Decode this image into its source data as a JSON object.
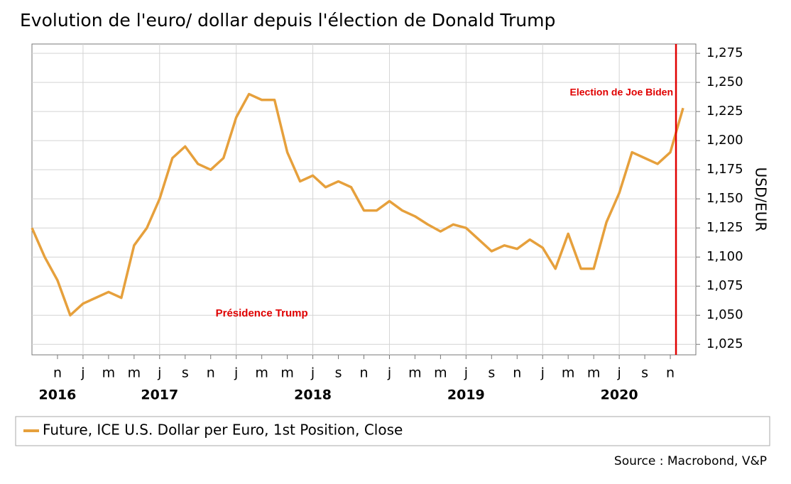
{
  "chart_data": {
    "type": "line",
    "title": "Evolution de l'euro/ dollar depuis l'élection de Donald Trump",
    "y_label": "USD/EUR",
    "source": "Source : Macrobond, V&P",
    "x": [
      "2016-09",
      "2016-10",
      "2016-11",
      "2016-12",
      "2017-01",
      "2017-02",
      "2017-03",
      "2017-04",
      "2017-05",
      "2017-06",
      "2017-07",
      "2017-08",
      "2017-09",
      "2017-10",
      "2017-11",
      "2017-12",
      "2018-01",
      "2018-02",
      "2018-03",
      "2018-04",
      "2018-05",
      "2018-06",
      "2018-07",
      "2018-08",
      "2018-09",
      "2018-10",
      "2018-11",
      "2018-12",
      "2019-01",
      "2019-02",
      "2019-03",
      "2019-04",
      "2019-05",
      "2019-06",
      "2019-07",
      "2019-08",
      "2019-09",
      "2019-10",
      "2019-11",
      "2019-12",
      "2020-01",
      "2020-02",
      "2020-03",
      "2020-04",
      "2020-05",
      "2020-06",
      "2020-07",
      "2020-08",
      "2020-09",
      "2020-10",
      "2020-11",
      "2020-12"
    ],
    "series": [
      {
        "name": "Future, ICE U.S. Dollar per Euro, 1st Position, Close",
        "color": "#e6a03c",
        "values": [
          1.125,
          1.1,
          1.08,
          1.05,
          1.06,
          1.065,
          1.07,
          1.065,
          1.11,
          1.125,
          1.15,
          1.185,
          1.195,
          1.18,
          1.175,
          1.185,
          1.22,
          1.24,
          1.235,
          1.235,
          1.19,
          1.165,
          1.17,
          1.16,
          1.165,
          1.16,
          1.14,
          1.14,
          1.148,
          1.14,
          1.135,
          1.128,
          1.122,
          1.128,
          1.125,
          1.115,
          1.105,
          1.11,
          1.107,
          1.115,
          1.108,
          1.09,
          1.12,
          1.09,
          1.09,
          1.13,
          1.155,
          1.19,
          1.185,
          1.18,
          1.19,
          1.228
        ]
      }
    ],
    "xlim": [
      "2016-09",
      "2021-01"
    ],
    "ylim": [
      1.016,
      1.283
    ],
    "yticks": [
      {
        "value": 1.025,
        "label": "1,025"
      },
      {
        "value": 1.05,
        "label": "1,050"
      },
      {
        "value": 1.075,
        "label": "1,075"
      },
      {
        "value": 1.1,
        "label": "1,100"
      },
      {
        "value": 1.125,
        "label": "1,125"
      },
      {
        "value": 1.15,
        "label": "1,150"
      },
      {
        "value": 1.175,
        "label": "1,175"
      },
      {
        "value": 1.2,
        "label": "1,200"
      },
      {
        "value": 1.225,
        "label": "1,225"
      },
      {
        "value": 1.25,
        "label": "1,250"
      },
      {
        "value": 1.275,
        "label": "1,275"
      }
    ],
    "xticks": [
      {
        "value": "2016-11",
        "label": "n"
      },
      {
        "value": "2017-01",
        "label": "j"
      },
      {
        "value": "2017-03",
        "label": "m"
      },
      {
        "value": "2017-05",
        "label": "m"
      },
      {
        "value": "2017-07",
        "label": "j"
      },
      {
        "value": "2017-09",
        "label": "s"
      },
      {
        "value": "2017-11",
        "label": "n"
      },
      {
        "value": "2018-01",
        "label": "j"
      },
      {
        "value": "2018-03",
        "label": "m"
      },
      {
        "value": "2018-05",
        "label": "m"
      },
      {
        "value": "2018-07",
        "label": "j"
      },
      {
        "value": "2018-09",
        "label": "s"
      },
      {
        "value": "2018-11",
        "label": "n"
      },
      {
        "value": "2019-01",
        "label": "j"
      },
      {
        "value": "2019-03",
        "label": "m"
      },
      {
        "value": "2019-05",
        "label": "m"
      },
      {
        "value": "2019-07",
        "label": "j"
      },
      {
        "value": "2019-09",
        "label": "s"
      },
      {
        "value": "2019-11",
        "label": "n"
      },
      {
        "value": "2020-01",
        "label": "j"
      },
      {
        "value": "2020-03",
        "label": "m"
      },
      {
        "value": "2020-05",
        "label": "m"
      },
      {
        "value": "2020-07",
        "label": "j"
      },
      {
        "value": "2020-09",
        "label": "s"
      },
      {
        "value": "2020-11",
        "label": "n"
      }
    ],
    "year_labels": [
      {
        "value": "2016-11",
        "label": "2016"
      },
      {
        "value": "2017-07",
        "label": "2017"
      },
      {
        "value": "2018-07",
        "label": "2018"
      },
      {
        "value": "2019-07",
        "label": "2019"
      },
      {
        "value": "2020-07",
        "label": "2020"
      }
    ],
    "grid": true,
    "annotations": [
      {
        "text": "Election de Joe Biden",
        "x": "2020-11",
        "color": "#e00000"
      },
      {
        "text": "Présidence Trump",
        "x": "2018-03",
        "y": 1.05,
        "color": "#e00000"
      }
    ]
  }
}
